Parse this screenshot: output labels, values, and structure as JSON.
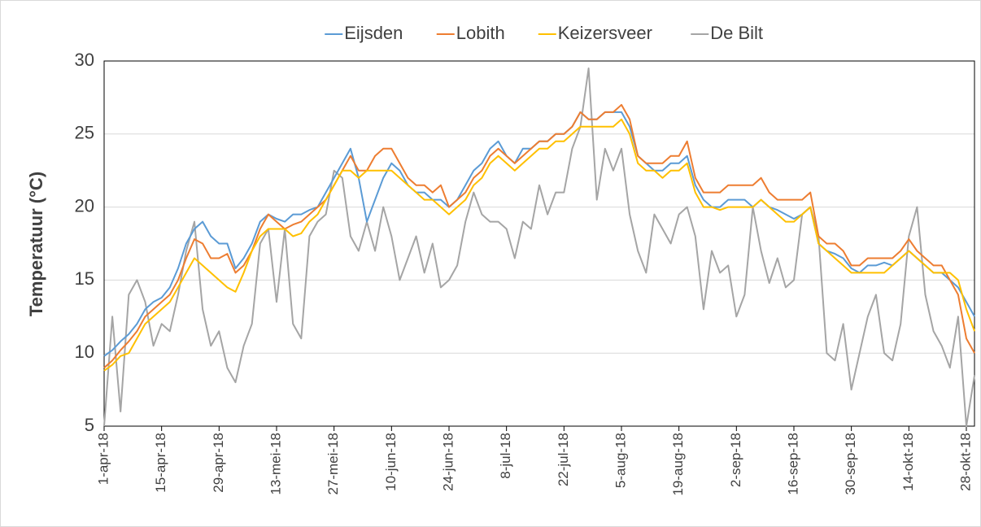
{
  "chart_data": {
    "type": "line",
    "y_label": "Temperatuur (°C)",
    "categories": [
      "1-apr-18",
      null,
      null,
      null,
      null,
      null,
      null,
      "15-apr-18",
      null,
      null,
      null,
      null,
      null,
      null,
      "29-apr-18",
      null,
      null,
      null,
      null,
      null,
      null,
      "13-mei-18",
      null,
      null,
      null,
      null,
      null,
      null,
      "27-mei-18",
      null,
      null,
      null,
      null,
      null,
      null,
      "10-jun-18",
      null,
      null,
      null,
      null,
      null,
      null,
      "24-jun-18",
      null,
      null,
      null,
      null,
      null,
      null,
      "8-jul-18",
      null,
      null,
      null,
      null,
      null,
      null,
      "22-jul-18",
      null,
      null,
      null,
      null,
      null,
      null,
      "5-aug-18",
      null,
      null,
      null,
      null,
      null,
      null,
      "19-aug-18",
      null,
      null,
      null,
      null,
      null,
      null,
      "2-sep-18",
      null,
      null,
      null,
      null,
      null,
      null,
      "16-sep-18",
      null,
      null,
      null,
      null,
      null,
      null,
      "30-sep-18",
      null,
      null,
      null,
      null,
      null,
      null,
      "14-okt-18",
      null,
      null,
      null,
      null,
      null,
      null,
      "28-okt-18",
      null
    ],
    "series": [
      {
        "name": "Eijsden",
        "color": "#5b9bd5",
        "values": [
          9.8,
          10.2,
          10.8,
          11.3,
          12.0,
          13.0,
          13.5,
          13.8,
          14.5,
          15.8,
          17.5,
          18.5,
          19.0,
          18.0,
          17.5,
          17.5,
          15.8,
          16.5,
          17.5,
          19.0,
          19.5,
          19.2,
          19.0,
          19.5,
          19.5,
          19.8,
          20.0,
          21.0,
          22.0,
          23.0,
          24.0,
          22.0,
          19.0,
          20.5,
          22.0,
          23.0,
          22.5,
          21.5,
          21.0,
          21.0,
          20.5,
          20.5,
          20.0,
          20.5,
          21.5,
          22.5,
          23.0,
          24.0,
          24.5,
          23.5,
          23.0,
          24.0,
          24.0,
          24.5,
          24.5,
          25.0,
          25.0,
          25.5,
          26.5,
          26.0,
          26.0,
          26.5,
          26.5,
          26.5,
          25.5,
          23.5,
          23.0,
          22.5,
          22.5,
          23.0,
          23.0,
          23.5,
          21.5,
          20.5,
          20.0,
          20.0,
          20.5,
          20.5,
          20.5,
          20.0,
          20.5,
          20.0,
          19.8,
          19.5,
          19.2,
          19.5,
          20.0,
          17.5,
          17.0,
          16.8,
          16.5,
          15.8,
          15.5,
          16.0,
          16.0,
          16.2,
          16.0,
          16.5,
          17.0,
          16.5,
          16.0,
          15.5,
          15.5,
          15.0,
          14.5,
          13.5,
          12.5
        ]
      },
      {
        "name": "Lobith",
        "color": "#ed7d31",
        "values": [
          9.0,
          9.5,
          10.2,
          10.8,
          11.5,
          12.5,
          13.0,
          13.5,
          14.0,
          15.0,
          16.5,
          17.8,
          17.5,
          16.5,
          16.5,
          16.8,
          15.5,
          16.0,
          17.0,
          18.5,
          19.5,
          19.0,
          18.5,
          18.8,
          19.0,
          19.5,
          20.0,
          20.5,
          21.5,
          22.5,
          23.5,
          22.5,
          22.5,
          23.5,
          24.0,
          24.0,
          23.0,
          22.0,
          21.5,
          21.5,
          21.0,
          21.5,
          20.0,
          20.5,
          21.0,
          22.0,
          22.5,
          23.5,
          24.0,
          23.5,
          23.0,
          23.5,
          24.0,
          24.5,
          24.5,
          25.0,
          25.0,
          25.5,
          26.5,
          26.0,
          26.0,
          26.5,
          26.5,
          27.0,
          26.0,
          23.5,
          23.0,
          23.0,
          23.0,
          23.5,
          23.5,
          24.5,
          22.0,
          21.0,
          21.0,
          21.0,
          21.5,
          21.5,
          21.5,
          21.5,
          22.0,
          21.0,
          20.5,
          20.5,
          20.5,
          20.5,
          21.0,
          18.0,
          17.5,
          17.5,
          17.0,
          16.0,
          16.0,
          16.5,
          16.5,
          16.5,
          16.5,
          17.0,
          17.8,
          17.0,
          16.5,
          16.0,
          16.0,
          15.0,
          14.0,
          11.0,
          10.0
        ]
      },
      {
        "name": "Keizersveer",
        "color": "#ffc000",
        "values": [
          8.8,
          9.2,
          9.8,
          10.0,
          11.0,
          12.0,
          12.5,
          13.0,
          13.5,
          14.5,
          15.5,
          16.5,
          16.0,
          15.5,
          15.0,
          14.5,
          14.2,
          15.5,
          17.0,
          18.0,
          18.5,
          18.5,
          18.5,
          18.0,
          18.2,
          19.0,
          19.5,
          20.5,
          21.5,
          22.5,
          22.5,
          22.0,
          22.5,
          22.5,
          22.5,
          22.5,
          22.0,
          21.5,
          21.0,
          20.5,
          20.5,
          20.0,
          19.5,
          20.0,
          20.5,
          21.5,
          22.0,
          23.0,
          23.5,
          23.0,
          22.5,
          23.0,
          23.5,
          24.0,
          24.0,
          24.5,
          24.5,
          25.0,
          25.5,
          25.5,
          25.5,
          25.5,
          25.5,
          26.0,
          25.0,
          23.0,
          22.5,
          22.5,
          22.0,
          22.5,
          22.5,
          23.0,
          21.0,
          20.0,
          20.0,
          19.8,
          20.0,
          20.0,
          20.0,
          20.0,
          20.5,
          20.0,
          19.5,
          19.0,
          19.0,
          19.5,
          20.0,
          17.5,
          17.0,
          16.5,
          16.0,
          15.5,
          15.5,
          15.5,
          15.5,
          15.5,
          16.0,
          16.5,
          17.0,
          16.5,
          16.0,
          15.5,
          15.5,
          15.5,
          15.0,
          13.0,
          11.5
        ]
      },
      {
        "name": "De Bilt",
        "color": "#a5a5a5",
        "values": [
          5.0,
          12.5,
          6.0,
          14.0,
          15.0,
          13.5,
          10.5,
          12.0,
          11.5,
          14.0,
          17.0,
          19.0,
          13.0,
          10.5,
          11.5,
          9.0,
          8.0,
          10.5,
          12.0,
          17.5,
          18.5,
          13.5,
          18.5,
          12.0,
          11.0,
          18.0,
          19.0,
          19.5,
          22.5,
          22.0,
          18.0,
          17.0,
          19.0,
          17.0,
          20.0,
          18.0,
          15.0,
          16.5,
          18.0,
          15.5,
          17.5,
          14.5,
          15.0,
          16.0,
          19.0,
          21.0,
          19.5,
          19.0,
          19.0,
          18.5,
          16.5,
          19.0,
          18.5,
          21.5,
          19.5,
          21.0,
          21.0,
          24.0,
          25.5,
          29.5,
          20.5,
          24.0,
          22.5,
          24.0,
          19.5,
          17.0,
          15.5,
          19.5,
          18.5,
          17.5,
          19.5,
          20.0,
          18.0,
          13.0,
          17.0,
          15.5,
          16.0,
          12.5,
          14.0,
          20.0,
          17.0,
          14.8,
          16.5,
          14.5,
          15.0,
          19.5,
          20.0,
          18.0,
          10.0,
          9.5,
          12.0,
          7.5,
          10.0,
          12.5,
          14.0,
          10.0,
          9.5,
          12.0,
          18.0,
          20.0,
          14.0,
          11.5,
          10.5,
          9.0,
          12.5,
          5.0,
          8.5
        ]
      }
    ],
    "ylim": [
      5,
      30
    ],
    "yticks": [
      5,
      10,
      15,
      20,
      25,
      30
    ],
    "grid": true,
    "legend": "top"
  }
}
